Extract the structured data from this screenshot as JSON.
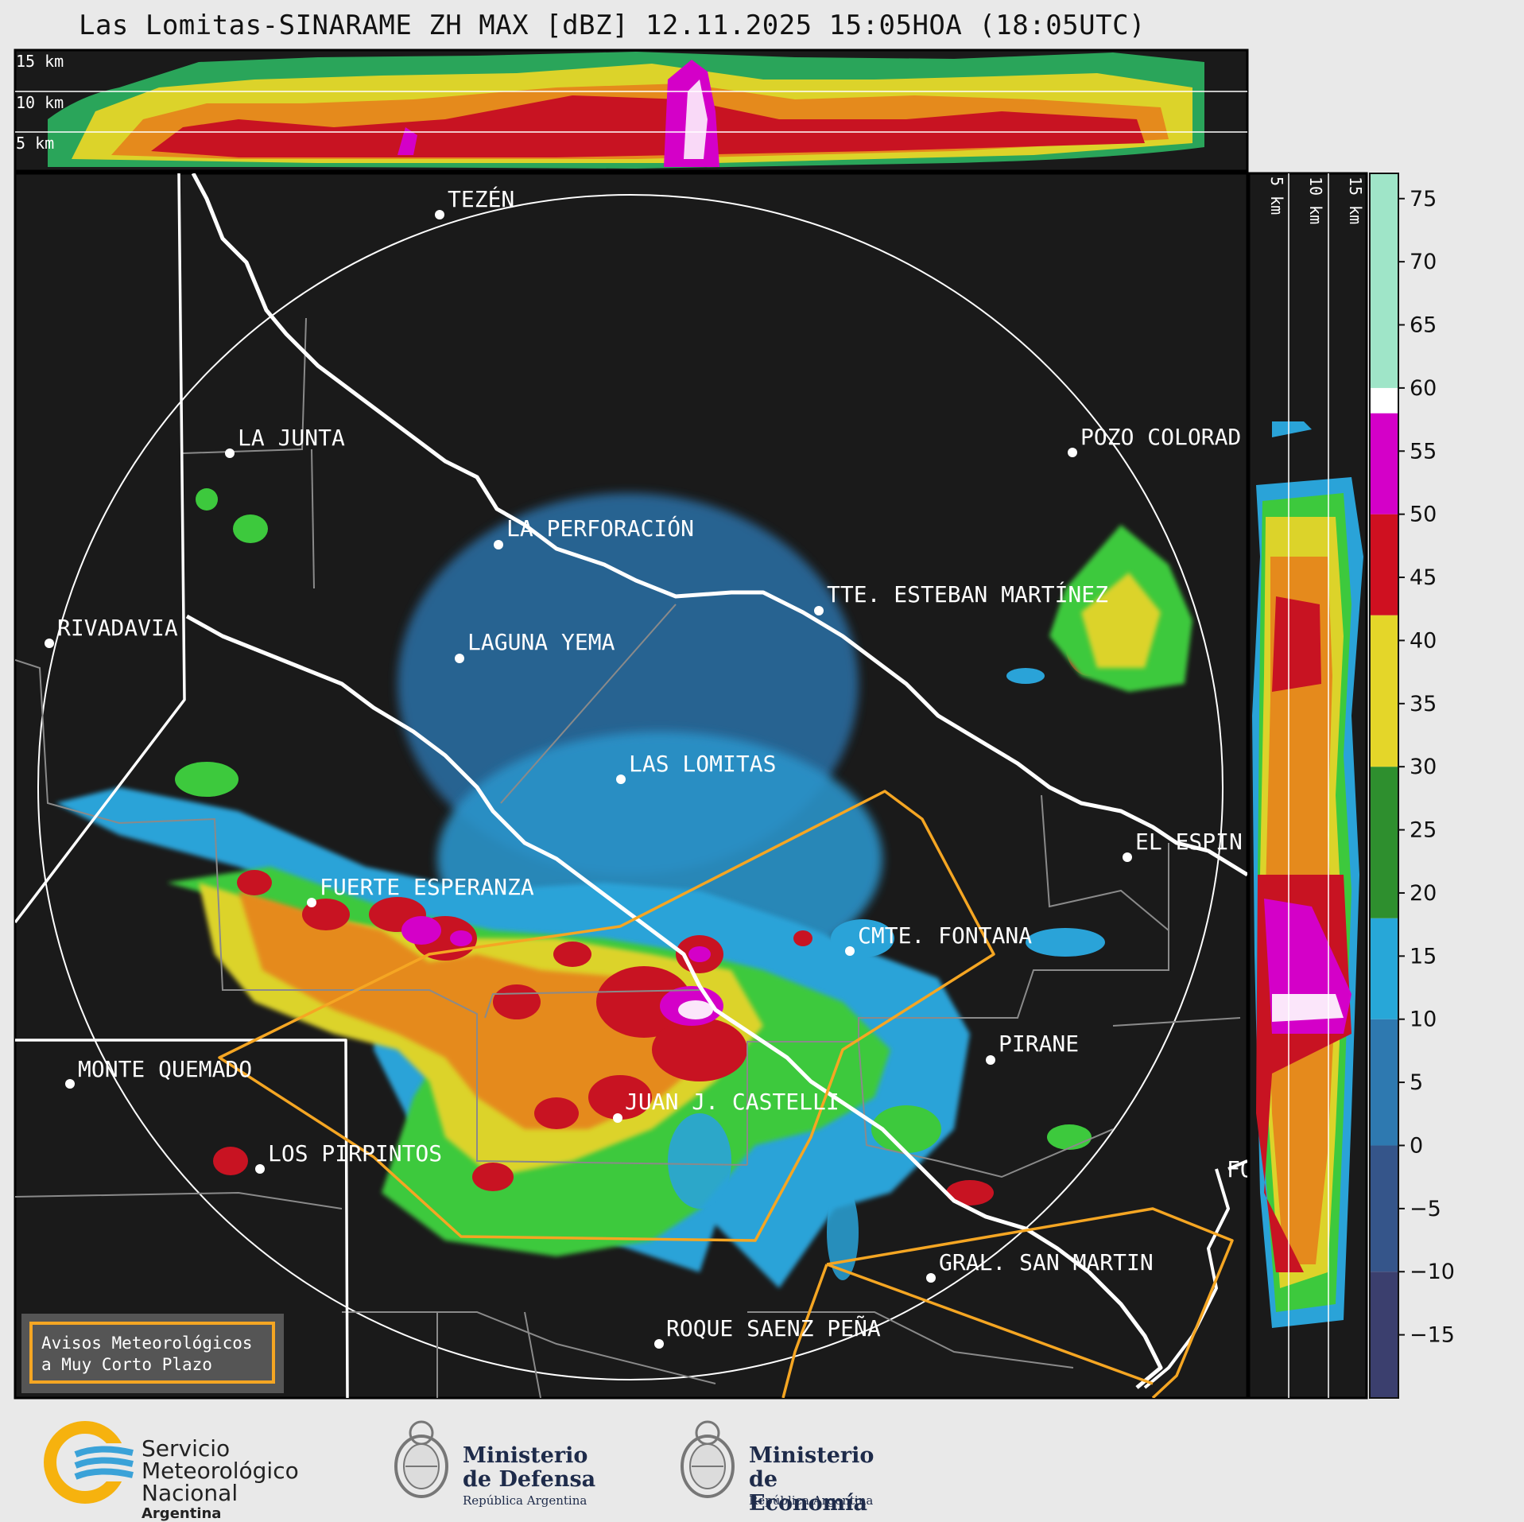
{
  "title": "Las Lomitas-SINARAME ZH MAX [dBZ] 12.11.2025 15:05HOA (18:05UTC)",
  "top_panel": {
    "height_labels": [
      "15 km",
      "10 km",
      "5 km"
    ]
  },
  "side_panel": {
    "height_labels": [
      "5 km",
      "10 km",
      "15 km"
    ]
  },
  "colorbar": {
    "tick_labels": [
      "75",
      "70",
      "65",
      "60",
      "55",
      "50",
      "45",
      "40",
      "35",
      "30",
      "25",
      "20",
      "15",
      "10",
      "5",
      "0",
      "−5",
      "−10",
      "−15"
    ],
    "tick_values": [
      75,
      70,
      65,
      60,
      55,
      50,
      45,
      40,
      35,
      30,
      25,
      20,
      15,
      10,
      5,
      0,
      -5,
      -10,
      -15
    ],
    "range": [
      -20,
      77
    ],
    "bands": [
      {
        "from": -20,
        "to": -10,
        "color": "#3b3f6e"
      },
      {
        "from": -10,
        "to": 0,
        "color": "#35558a"
      },
      {
        "from": 0,
        "to": 10,
        "color": "#2e79b0"
      },
      {
        "from": 10,
        "to": 18,
        "color": "#27a7d8"
      },
      {
        "from": 18,
        "to": 30,
        "color": "#2e8f2e"
      },
      {
        "from": 30,
        "to": 42,
        "color": "#e4d629"
      },
      {
        "from": 42,
        "to": 50,
        "color": "#cf1020"
      },
      {
        "from": 50,
        "to": 58,
        "color": "#d400c8"
      },
      {
        "from": 58,
        "to": 60,
        "color": "#ffffff"
      },
      {
        "from": 60,
        "to": 77,
        "color": "#9fe5c8"
      }
    ]
  },
  "cities": [
    {
      "name": "TEZÉN"
    },
    {
      "name": "LA JUNTA"
    },
    {
      "name": "POZO COLORAD"
    },
    {
      "name": "LA PERFORACIÓN"
    },
    {
      "name": "TTE. ESTEBAN MARTÍNEZ"
    },
    {
      "name": "RIVADAVIA"
    },
    {
      "name": "LAGUNA YEMA"
    },
    {
      "name": "LAS LOMITAS"
    },
    {
      "name": "EL ESPIN"
    },
    {
      "name": "FUERTE ESPERANZA"
    },
    {
      "name": "CMTE. FONTANA"
    },
    {
      "name": "PIRANE"
    },
    {
      "name": "MONTE QUEMADO"
    },
    {
      "name": "JUAN J. CASTELLI"
    },
    {
      "name": "LOS PIRPINTOS"
    },
    {
      "name": "GRAL. SAN MARTIN"
    },
    {
      "name": "ROQUE SAENZ PEÑA"
    },
    {
      "name": "FO"
    }
  ],
  "warning_box": {
    "line1": "Avisos Meteorológicos",
    "line2": "a Muy Corto Plazo"
  },
  "logos": {
    "smn": {
      "line1": "Servicio",
      "line2": "Meteorológico",
      "line3": "Nacional",
      "country": "Argentina"
    },
    "defensa": {
      "line1": "Ministerio",
      "line2": "de Defensa",
      "sub": "República Argentina"
    },
    "economia": {
      "line1": "Ministerio",
      "line2": "de Economía",
      "sub": "República Argentina"
    }
  },
  "colors": {
    "map_bg": "#1a1a1a",
    "border_white": "#ffffff",
    "warning_orange": "#f5a623",
    "grey_lines": "#8a8a8a"
  }
}
